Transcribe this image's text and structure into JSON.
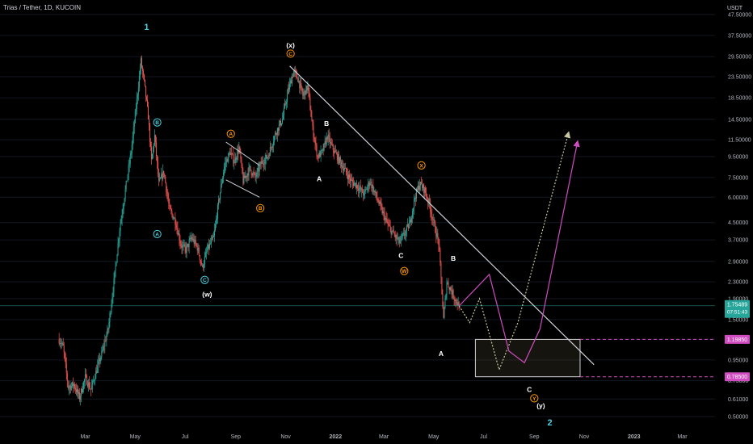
{
  "header": {
    "symbol": "Trias / Tether, 1D, KUCOIN",
    "currency": "USDT"
  },
  "chart_data": {
    "type": "candlestick",
    "scale": "log",
    "price_axis": {
      "ticks": [
        0.5,
        0.61,
        0.75,
        0.95,
        1.2,
        1.5,
        1.9,
        2.3,
        2.9,
        3.7,
        4.5,
        6.0,
        7.5,
        9.5,
        11.5,
        14.5,
        18.5,
        23.5,
        29.5,
        37.5,
        47.5
      ],
      "labels": [
        "0.50000",
        "0.61000",
        "0.75000",
        "0.95000",
        "1.20000",
        "1.50000",
        "1.90000",
        "2.30000",
        "2.90000",
        "3.70000",
        "4.50000",
        "6.00000",
        "7.50000",
        "9.50000",
        "11.50000",
        "14.50000",
        "18.50000",
        "23.50000",
        "29.50000",
        "37.50000",
        "47.50000"
      ],
      "range": [
        0.44,
        56
      ]
    },
    "time_axis": {
      "labels": [
        "Mar",
        "May",
        "Jul",
        "Sep",
        "Nov",
        "2022",
        "Mar",
        "May",
        "Jul",
        "Sep",
        "Nov",
        "2023",
        "Mar"
      ],
      "start": "2021-01-15",
      "end": "2023-04-10"
    },
    "price_markers": [
      {
        "value": 1.75489,
        "label": "1.75489",
        "sublabel": "07:51:43",
        "color": "#26a69a"
      },
      {
        "value": 1.1985,
        "label": "1.19850",
        "color": "#d04cc0"
      },
      {
        "value": 0.785,
        "label": "0.78500",
        "color": "#d04cc0"
      }
    ],
    "price_path": [
      [
        "2021-01-28",
        1.2
      ],
      [
        "2021-02-02",
        1.1
      ],
      [
        "2021-02-08",
        0.7
      ],
      [
        "2021-02-15",
        0.72
      ],
      [
        "2021-02-22",
        0.62
      ],
      [
        "2021-03-01",
        0.78
      ],
      [
        "2021-03-08",
        0.68
      ],
      [
        "2021-03-15",
        0.85
      ],
      [
        "2021-03-22",
        1.05
      ],
      [
        "2021-03-29",
        1.35
      ],
      [
        "2021-04-05",
        2.3
      ],
      [
        "2021-04-12",
        4.2
      ],
      [
        "2021-04-19",
        6.5
      ],
      [
        "2021-04-26",
        10
      ],
      [
        "2021-05-03",
        18
      ],
      [
        "2021-05-08",
        28
      ],
      [
        "2021-05-12",
        22
      ],
      [
        "2021-05-17",
        15
      ],
      [
        "2021-05-21",
        9
      ],
      [
        "2021-05-25",
        12
      ],
      [
        "2021-05-30",
        7
      ],
      [
        "2021-06-05",
        8
      ],
      [
        "2021-06-12",
        5.2
      ],
      [
        "2021-06-19",
        4.6
      ],
      [
        "2021-06-26",
        3.5
      ],
      [
        "2021-07-02",
        3.3
      ],
      [
        "2021-07-09",
        3.8
      ],
      [
        "2021-07-16",
        3.4
      ],
      [
        "2021-07-22",
        2.7
      ],
      [
        "2021-07-28",
        3.3
      ],
      [
        "2021-08-05",
        3.8
      ],
      [
        "2021-08-12",
        6
      ],
      [
        "2021-08-18",
        8.5
      ],
      [
        "2021-08-25",
        10
      ],
      [
        "2021-08-30",
        9
      ],
      [
        "2021-09-05",
        10.5
      ],
      [
        "2021-09-10",
        7.2
      ],
      [
        "2021-09-18",
        8.3
      ],
      [
        "2021-09-25",
        7.5
      ],
      [
        "2021-10-02",
        8.8
      ],
      [
        "2021-10-10",
        9.5
      ],
      [
        "2021-10-20",
        12.5
      ],
      [
        "2021-10-28",
        14.5
      ],
      [
        "2021-11-04",
        20
      ],
      [
        "2021-11-11",
        25
      ],
      [
        "2021-11-16",
        23
      ],
      [
        "2021-11-22",
        19
      ],
      [
        "2021-11-28",
        21
      ],
      [
        "2021-12-04",
        13
      ],
      [
        "2021-12-10",
        9.5
      ],
      [
        "2021-12-16",
        10
      ],
      [
        "2021-12-22",
        12
      ],
      [
        "2021-12-28",
        10.5
      ],
      [
        "2022-01-05",
        9.2
      ],
      [
        "2022-01-12",
        8.2
      ],
      [
        "2022-01-20",
        7.2
      ],
      [
        "2022-01-28",
        6.8
      ],
      [
        "2022-02-05",
        6.2
      ],
      [
        "2022-02-12",
        7.2
      ],
      [
        "2022-02-20",
        6
      ],
      [
        "2022-02-28",
        5
      ],
      [
        "2022-03-07",
        4.3
      ],
      [
        "2022-03-14",
        3.9
      ],
      [
        "2022-03-20",
        3.6
      ],
      [
        "2022-03-27",
        4
      ],
      [
        "2022-04-02",
        4.5
      ],
      [
        "2022-04-08",
        6
      ],
      [
        "2022-04-14",
        7
      ],
      [
        "2022-04-20",
        6.5
      ],
      [
        "2022-04-26",
        5.5
      ],
      [
        "2022-05-02",
        4.3
      ],
      [
        "2022-05-07",
        3.6
      ],
      [
        "2022-05-10",
        2.4
      ],
      [
        "2022-05-13",
        1.5
      ],
      [
        "2022-05-17",
        2.3
      ],
      [
        "2022-05-22",
        2.1
      ],
      [
        "2022-05-27",
        1.9
      ],
      [
        "2022-06-01",
        1.75
      ]
    ],
    "trendline": {
      "from": [
        "2021-11-06",
        26.5
      ],
      "to": [
        "2022-11-13",
        0.9
      ],
      "color": "#d1d4dc"
    },
    "channel_lines": [
      {
        "from": [
          "2021-08-20",
          11.2
        ],
        "to": [
          "2021-09-30",
          8.6
        ]
      },
      {
        "from": [
          "2021-08-20",
          7.3
        ],
        "to": [
          "2021-09-30",
          6.0
        ]
      }
    ],
    "target_box": {
      "from": "2022-06-21",
      "to": "2022-10-27",
      "top": 1.1985,
      "bottom": 0.785,
      "line_end": "2023-04-10",
      "color": "#d04cc0"
    },
    "projections": [
      {
        "color": "#c8c8a0",
        "style": "dotted",
        "points": [
          [
            "2022-06-01",
            1.75
          ],
          [
            "2022-06-14",
            1.45
          ],
          [
            "2022-06-26",
            1.9
          ],
          [
            "2022-07-20",
            0.85
          ],
          [
            "2022-08-12",
            1.45
          ],
          [
            "2022-10-13",
            12.5
          ]
        ]
      },
      {
        "color": "#d04cc0",
        "style": "solid",
        "points": [
          [
            "2022-06-01",
            1.75
          ],
          [
            "2022-07-08",
            2.5
          ],
          [
            "2022-08-01",
            1.05
          ],
          [
            "2022-08-20",
            0.92
          ],
          [
            "2022-09-08",
            1.35
          ],
          [
            "2022-10-24",
            11.3
          ]
        ]
      }
    ],
    "wave_labels": [
      {
        "text": "1",
        "date": "2021-05-15",
        "price": 41,
        "color": "#4dd0e1",
        "style": "plain"
      },
      {
        "text": "B",
        "date": "2021-05-28",
        "price": 14,
        "color": "#4dd0e1",
        "style": "circle"
      },
      {
        "text": "A",
        "date": "2021-05-28",
        "price": 3.95,
        "color": "#4dd0e1",
        "style": "circle"
      },
      {
        "text": "C",
        "date": "2021-07-25",
        "price": 2.35,
        "color": "#4dd0e1",
        "style": "circle"
      },
      {
        "text": "(w)",
        "date": "2021-07-28",
        "price": 2.0,
        "color": "#ffffff",
        "style": "plain"
      },
      {
        "text": "A",
        "date": "2021-08-26",
        "price": 12.3,
        "color": "#ff9800",
        "style": "circle"
      },
      {
        "text": "B",
        "date": "2021-10-01",
        "price": 5.3,
        "color": "#ff9800",
        "style": "circle"
      },
      {
        "text": "(x)",
        "date": "2021-11-07",
        "price": 33.5,
        "color": "#ffffff",
        "style": "plain"
      },
      {
        "text": "C",
        "date": "2021-11-07",
        "price": 30.5,
        "color": "#ff9800",
        "style": "circle"
      },
      {
        "text": "A",
        "date": "2021-12-12",
        "price": 7.4,
        "color": "#ffffff",
        "style": "plain"
      },
      {
        "text": "B",
        "date": "2021-12-21",
        "price": 13.8,
        "color": "#ffffff",
        "style": "plain"
      },
      {
        "text": "C",
        "date": "2022-03-22",
        "price": 3.1,
        "color": "#ffffff",
        "style": "plain"
      },
      {
        "text": "W",
        "date": "2022-03-26",
        "price": 2.6,
        "color": "#ff9800",
        "style": "circle"
      },
      {
        "text": "X",
        "date": "2022-04-16",
        "price": 8.6,
        "color": "#ff9800",
        "style": "circle"
      },
      {
        "text": "B",
        "date": "2022-05-25",
        "price": 3.0,
        "color": "#ffffff",
        "style": "plain"
      },
      {
        "text": "A",
        "date": "2022-05-10",
        "price": 1.02,
        "color": "#ffffff",
        "style": "plain"
      },
      {
        "text": "C",
        "date": "2022-08-26",
        "price": 0.68,
        "color": "#ffffff",
        "style": "plain"
      },
      {
        "text": "Y",
        "date": "2022-09-01",
        "price": 0.615,
        "color": "#ff9800",
        "style": "circle"
      },
      {
        "text": "(y)",
        "date": "2022-09-09",
        "price": 0.565,
        "color": "#ffffff",
        "style": "plain"
      },
      {
        "text": "2",
        "date": "2022-09-20",
        "price": 0.465,
        "color": "#4dd0e1",
        "style": "plain"
      }
    ]
  }
}
